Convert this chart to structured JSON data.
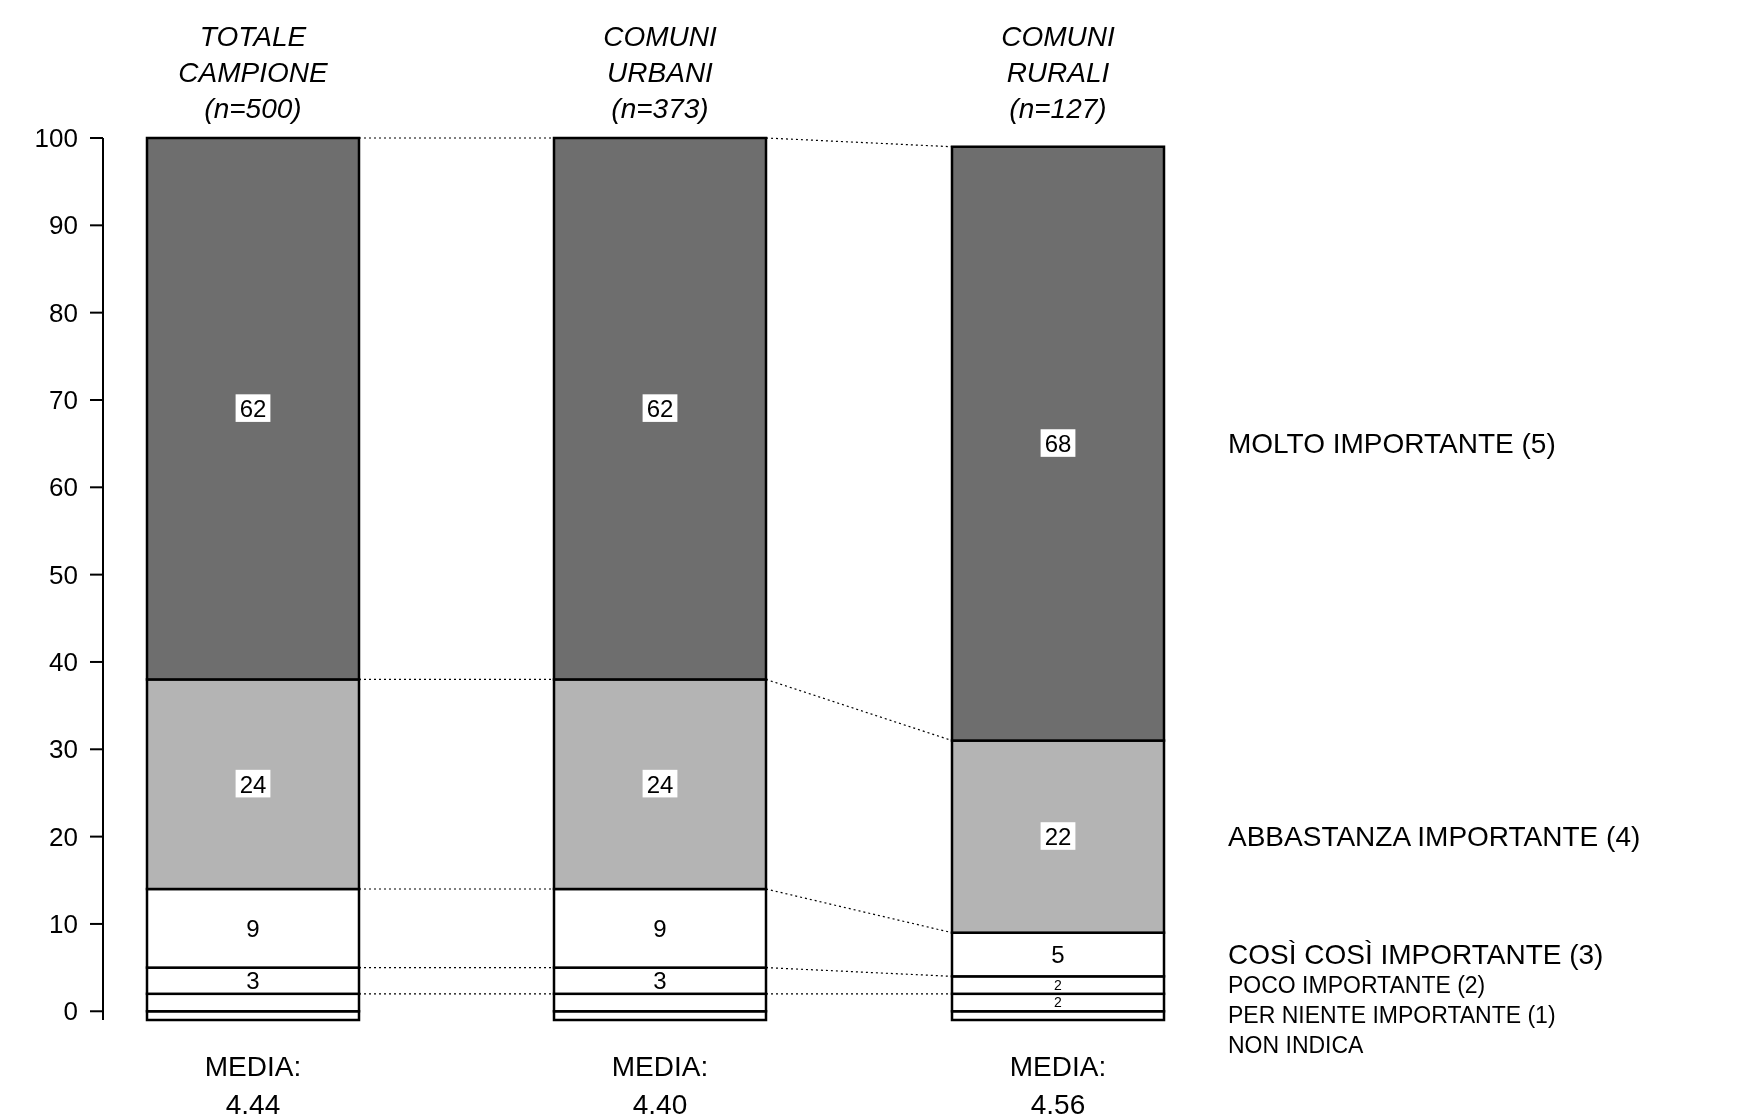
{
  "chart_data": {
    "type": "bar",
    "stacked": true,
    "categories": [
      "TOTALE\nCAMPIONE\n(n=500)",
      "COMUNI\nURBANI\n(n=373)",
      "COMUNI\nRURALI\n(n=127)"
    ],
    "series": [
      {
        "name": "NON INDICA",
        "color": "#ffffff",
        "values": [
          -1,
          -1,
          -1
        ],
        "value_labels": [
          null,
          null,
          null
        ]
      },
      {
        "name": "PER NIENTE IMPORTANTE (1)",
        "color": "#ffffff",
        "values": [
          2,
          2,
          2
        ],
        "value_labels": [
          null,
          null,
          "2"
        ]
      },
      {
        "name": "POCO IMPORTANTE (2)",
        "color": "#ffffff",
        "values": [
          3,
          3,
          2
        ],
        "value_labels": [
          "3",
          "3",
          "2"
        ]
      },
      {
        "name": "COSÌ COSÌ IMPORTANTE (3)",
        "color": "#ffffff",
        "values": [
          9,
          9,
          5
        ],
        "value_labels": [
          "9",
          "9",
          "5"
        ]
      },
      {
        "name": "ABBASTANZA IMPORTANTE (4)",
        "color": "#b4b4b4",
        "values": [
          24,
          24,
          22
        ],
        "value_labels": [
          "24",
          "24",
          "22"
        ]
      },
      {
        "name": "MOLTO IMPORTANTE (5)",
        "color": "#6e6e6e",
        "values": [
          62,
          62,
          68
        ],
        "value_labels": [
          "62",
          "62",
          "68"
        ]
      }
    ],
    "ylim": [
      -1,
      100
    ],
    "yticks": [
      0,
      10,
      20,
      30,
      40,
      50,
      60,
      70,
      80,
      90,
      100
    ],
    "grid": false,
    "annotations": [
      "MEDIA:\n4.44",
      "MEDIA:\n4.40",
      "MEDIA:\n4.56"
    ]
  }
}
